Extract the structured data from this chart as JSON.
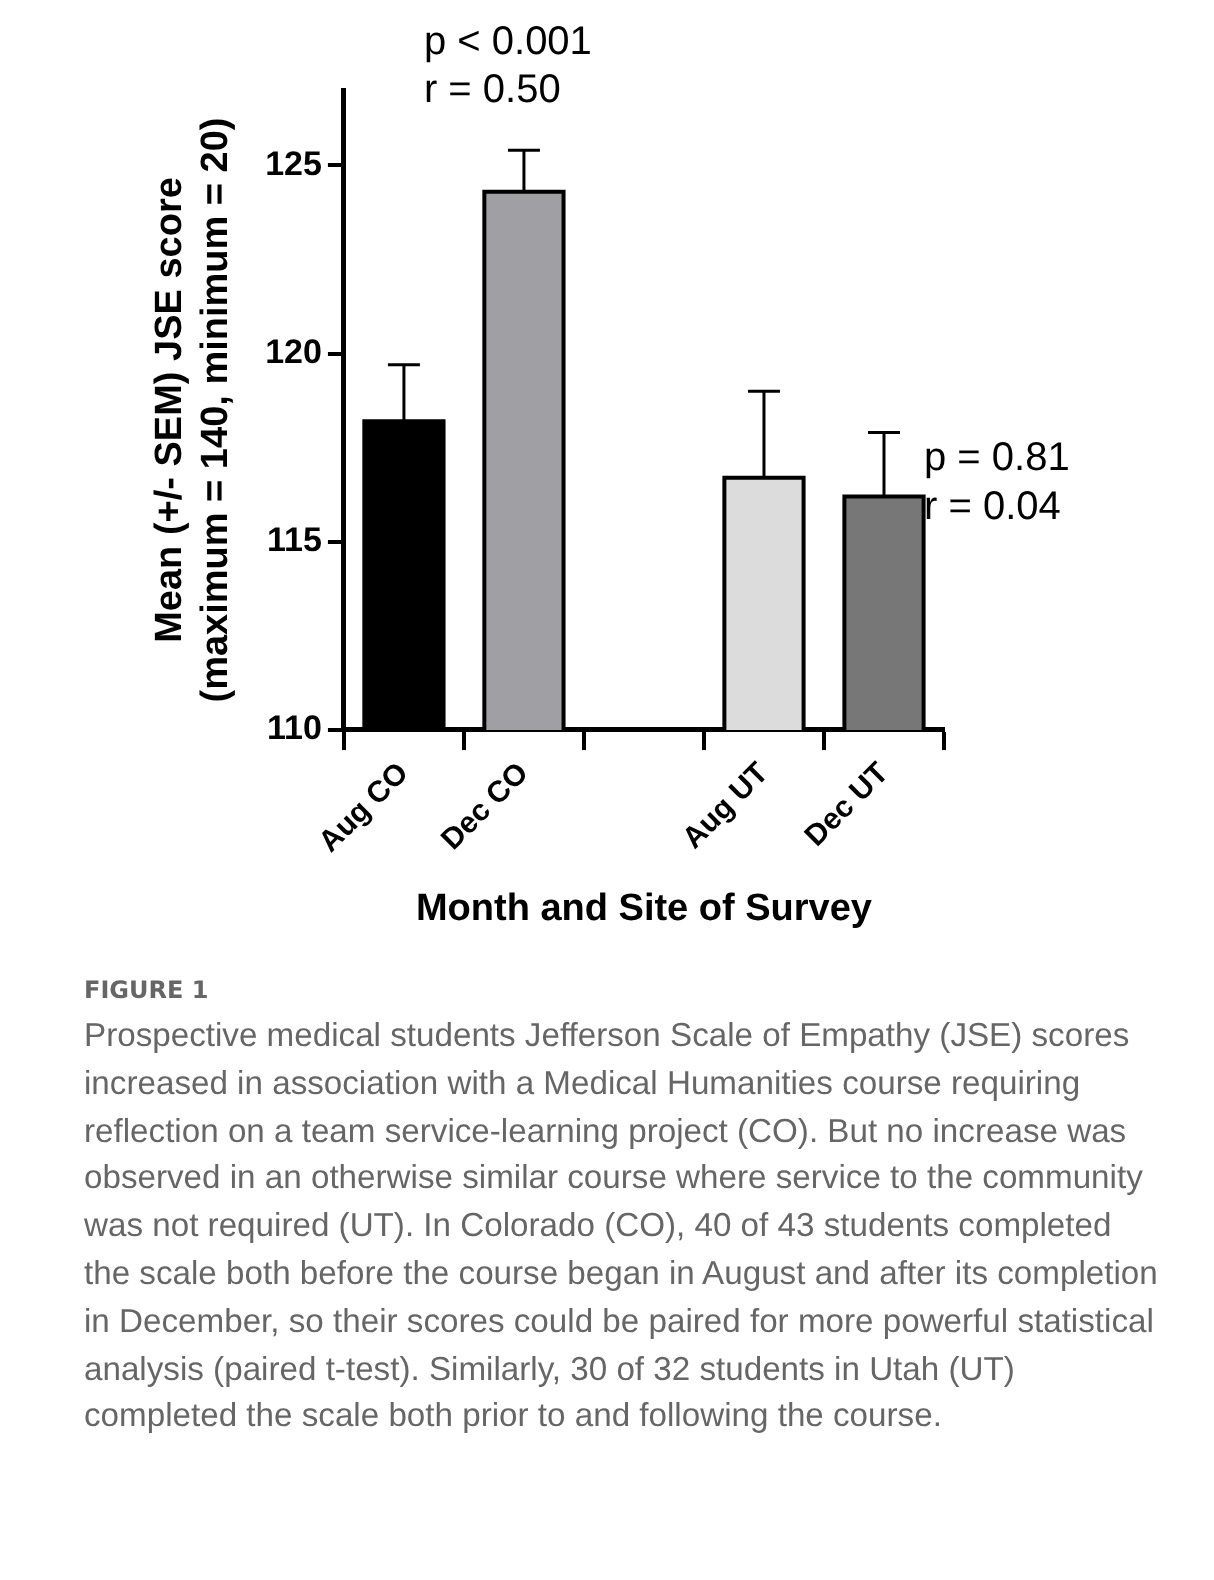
{
  "chart_data": {
    "type": "bar",
    "xlabel": "Month and Site of Survey",
    "ylabel": "Mean (+/- SEM) JSE score\n(maximum = 140, minimum = 20)",
    "categories": [
      "Aug CO",
      "Dec CO",
      null,
      "Aug UT",
      "Dec UT"
    ],
    "values": [
      118.2,
      124.3,
      null,
      116.7,
      116.2
    ],
    "colors": [
      "#000000",
      "#a0a0a4",
      "#ffffff",
      "#dcdcdc",
      "#777777"
    ],
    "errors": [
      [
        118.2,
        119.7
      ],
      [
        124.3,
        125.4
      ],
      null,
      [
        116.7,
        119.0
      ],
      [
        116.2,
        117.9
      ]
    ],
    "ylim": [
      110,
      127
    ],
    "yticks": [
      110,
      115,
      120,
      125
    ],
    "grid": false,
    "legend": false,
    "annotations": [
      "p < 0.001",
      "r = 0.50",
      "p = 0.81",
      "r = 0.04",
      "FIGURE 1",
      "Prospective medical students Jefferson Scale of Empathy (JSE) scores increased in association with a Medical Humanities course requiring reflection on a team service-learning project (CO). But no increase was observed in an otherwise similar course where service to the community was not required (UT). In Colorado (CO), 40 of 43 students completed the scale both before the course began in August and after its completion in December, so their scores could be paired for more powerful statistical analysis (paired t-test). Similarly, 30 of 32 students in Utah (UT) completed the scale both prior to and following the course."
    ]
  }
}
